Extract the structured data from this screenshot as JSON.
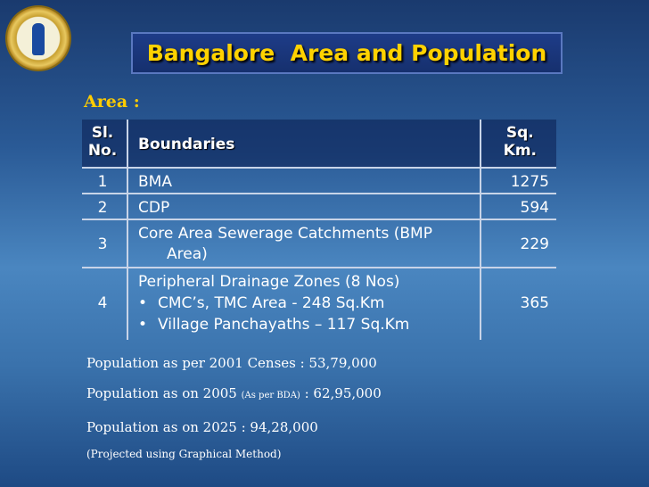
{
  "title": "Bangalore  Area and Population",
  "area_label": "Area :",
  "table": {
    "headers": {
      "sl_no_line1": "Sl.",
      "sl_no_line2": "No.",
      "boundaries": "Boundaries",
      "sqkm_line1": "Sq.",
      "sqkm_line2": "Km."
    },
    "rows": [
      {
        "sl": "1",
        "boundary": "BMA",
        "area": "1275"
      },
      {
        "sl": "2",
        "boundary": "CDP",
        "area": "594"
      },
      {
        "sl": "3",
        "boundary_line1": "Core Area Sewerage Catchments (BMP",
        "boundary_line2": "Area)",
        "area": "229"
      },
      {
        "sl": "4",
        "boundary": "Peripheral Drainage Zones (8 Nos)",
        "bullets": [
          "CMC’s, TMC Area - 248 Sq.Km",
          "Village Panchayaths – 117 Sq.Km"
        ],
        "area": "365"
      }
    ]
  },
  "notes": {
    "pop_2001": "Population as per 2001 Censes : 53,79,000",
    "pop_2005_a": "Population as on 2005 ",
    "pop_2005_small": "(As per BDA)",
    "pop_2005_b": " : 62,95,000",
    "pop_2025": "Population as on 2025 : 94,28,000",
    "projected": "(Projected using Graphical Method)"
  }
}
